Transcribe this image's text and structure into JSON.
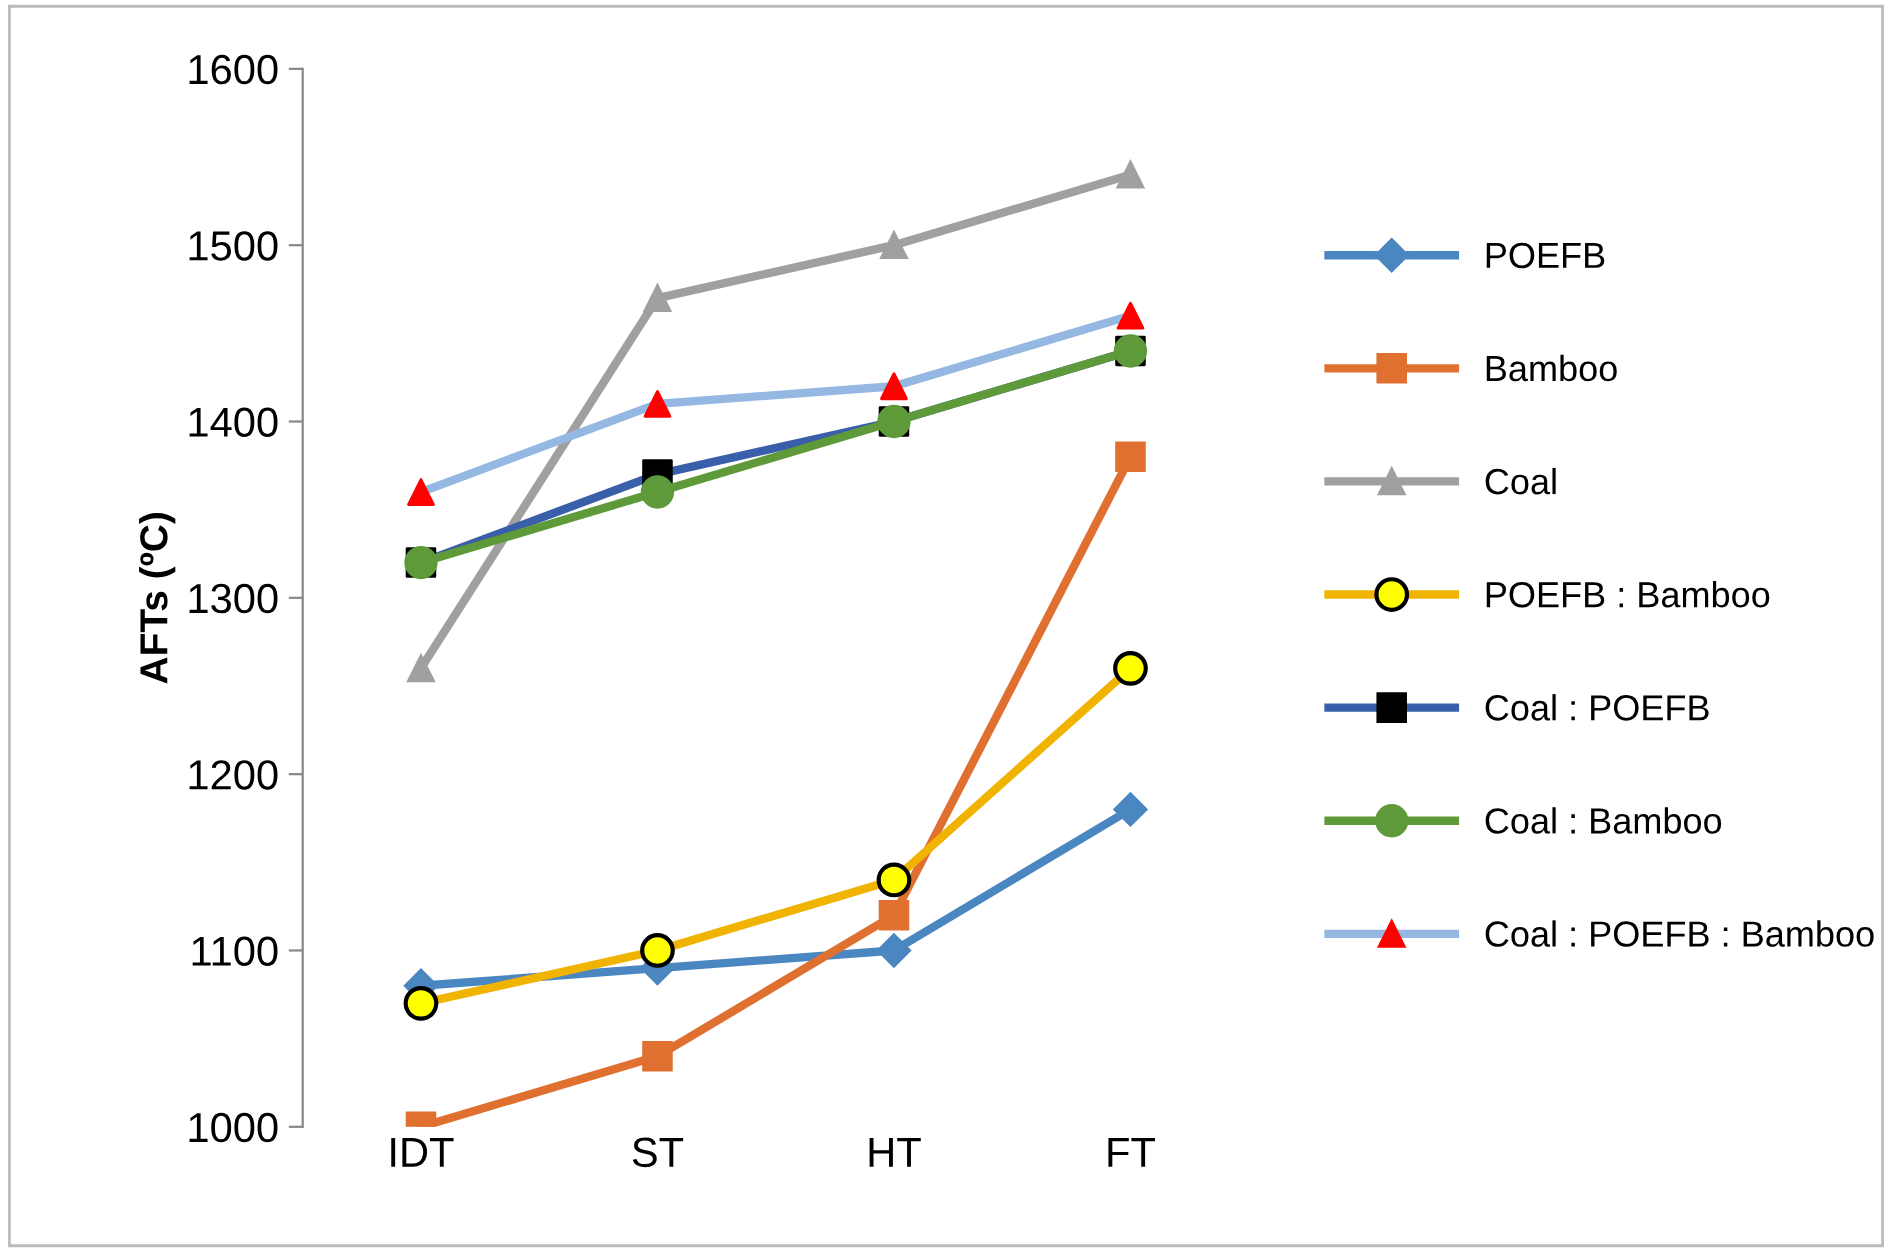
{
  "chart_data": {
    "type": "line",
    "ylabel": "AFTs (ºC)",
    "categories": [
      "IDT",
      "ST",
      "HT",
      "FT"
    ],
    "ylim": [
      1000,
      1600
    ],
    "yticks": [
      1000,
      1100,
      1200,
      1300,
      1400,
      1500,
      1600
    ],
    "grid": false,
    "legend": "right",
    "line_style": "solid",
    "series": [
      {
        "name": "POEFB",
        "color": "#4a86c0",
        "marker": "diamond",
        "values": [
          1080,
          1090,
          1100,
          1180
        ]
      },
      {
        "name": "Bamboo",
        "color": "#e07030",
        "marker": "square",
        "values": [
          1000,
          1040,
          1120,
          1380
        ]
      },
      {
        "name": "Coal",
        "color": "#a0a0a0",
        "marker": "triangle",
        "values": [
          1260,
          1470,
          1500,
          1540
        ]
      },
      {
        "name": "POEFB : Bamboo",
        "color": "#f0b400",
        "marker": "circle",
        "colors": [
          "#ffff00",
          "#ffff00",
          "#ffff00",
          "#ffff00"
        ],
        "values": [
          1070,
          1100,
          1140,
          1260
        ]
      },
      {
        "name": "Coal : POEFB",
        "color": "#3a5faa",
        "marker": "square",
        "colors": [
          "#000000",
          "#000000",
          "#000000",
          "#000000"
        ],
        "values": [
          1320,
          1370,
          1400,
          1440
        ]
      },
      {
        "name": "Coal : Bamboo",
        "color": "#5f9a3a",
        "marker": "circle",
        "values": [
          1320,
          1360,
          1400,
          1440
        ]
      },
      {
        "name": "Coal : POEFB : Bamboo",
        "color": "#94b8e2",
        "marker": "triangle",
        "colors": [
          "#ff0000",
          "#ff0000",
          "#ff0000",
          "#ff0000"
        ],
        "values": [
          1360,
          1410,
          1420,
          1460
        ]
      }
    ]
  }
}
